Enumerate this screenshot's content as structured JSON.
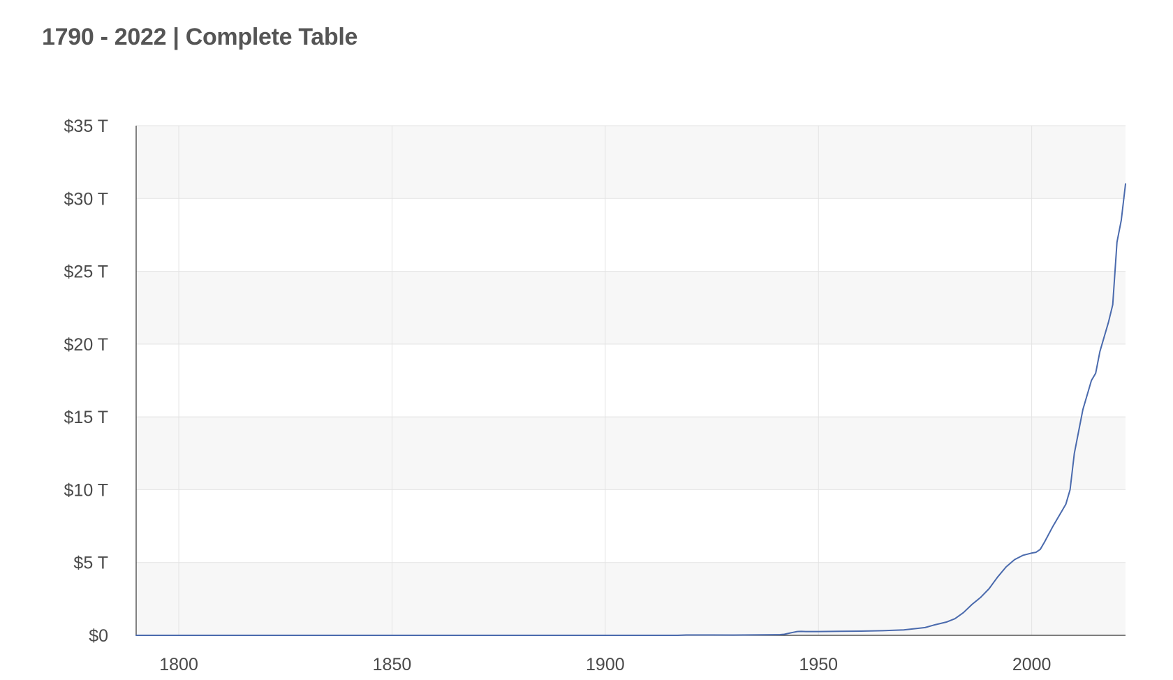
{
  "header": {
    "title": "1790 - 2022 | Complete Table"
  },
  "chart_data": {
    "type": "line",
    "title": "1790 - 2022 | Complete Table",
    "xlabel": "",
    "ylabel": "",
    "xlim": [
      1790,
      2022
    ],
    "ylim": [
      0,
      35
    ],
    "x_ticks": [
      1800,
      1850,
      1900,
      1950,
      2000
    ],
    "x_tick_labels": [
      "1800",
      "1850",
      "1900",
      "1950",
      "2000"
    ],
    "y_ticks": [
      0,
      5,
      10,
      15,
      20,
      25,
      30,
      35
    ],
    "y_tick_labels": [
      "$0",
      "$5 T",
      "$10 T",
      "$15 T",
      "$20 T",
      "$25 T",
      "$30 T",
      "$35 T"
    ],
    "grid": true,
    "legend": "none",
    "colors": {
      "line": "#4a6aad",
      "band": "#f7f7f7",
      "grid": "#e3e3e3",
      "axis": "#333333"
    },
    "series": [
      {
        "x": [
          1790,
          1800,
          1810,
          1820,
          1830,
          1840,
          1850,
          1860,
          1870,
          1880,
          1890,
          1900,
          1910,
          1916,
          1917,
          1918,
          1919,
          1920,
          1925,
          1930,
          1935,
          1940,
          1941,
          1942,
          1943,
          1944,
          1945,
          1946,
          1947,
          1950,
          1955,
          1960,
          1965,
          1970,
          1975,
          1977,
          1980,
          1982,
          1984,
          1986,
          1988,
          1990,
          1992,
          1994,
          1996,
          1998,
          2000,
          2001,
          2002,
          2003,
          2005,
          2007,
          2008,
          2009,
          2010,
          2011,
          2012,
          2013,
          2014,
          2015,
          2016,
          2017,
          2018,
          2019,
          2020,
          2021,
          2022
        ],
        "y": [
          0.0001,
          0.0001,
          0.0001,
          0.0001,
          0.0001,
          0.0001,
          0.0001,
          0.0001,
          0.002,
          0.002,
          0.001,
          0.001,
          0.001,
          0.001,
          0.003,
          0.012,
          0.025,
          0.026,
          0.021,
          0.016,
          0.029,
          0.043,
          0.049,
          0.072,
          0.137,
          0.201,
          0.259,
          0.269,
          0.258,
          0.257,
          0.273,
          0.286,
          0.317,
          0.371,
          0.533,
          0.7,
          0.91,
          1.14,
          1.56,
          2.12,
          2.6,
          3.2,
          4.0,
          4.7,
          5.2,
          5.5,
          5.65,
          5.7,
          5.9,
          6.4,
          7.5,
          8.5,
          9.0,
          10.0,
          12.5,
          14.0,
          15.5,
          16.5,
          17.5,
          18.0,
          19.5,
          20.5,
          21.5,
          22.7,
          27.0,
          28.5,
          31.0
        ]
      }
    ]
  }
}
